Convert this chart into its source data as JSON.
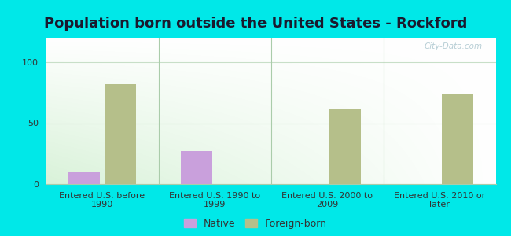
{
  "title": "Population born outside the United States - Rockford",
  "categories": [
    "Entered U.S. before\n1990",
    "Entered U.S. 1990 to\n1999",
    "Entered U.S. 2000 to\n2009",
    "Entered U.S. 2010 or\nlater"
  ],
  "native_values": [
    10,
    27,
    0,
    0
  ],
  "foreign_born_values": [
    82,
    0,
    62,
    74
  ],
  "native_color": "#c9a0dc",
  "foreign_born_color": "#b5bf8a",
  "ylim": [
    0,
    120
  ],
  "yticks": [
    0,
    50,
    100
  ],
  "outer_background": "#00e8e8",
  "bar_width": 0.28,
  "legend_native": "Native",
  "legend_foreign": "Foreign-born",
  "watermark": "City-Data.com",
  "title_fontsize": 13,
  "title_color": "#1a1a2e",
  "tick_fontsize": 8,
  "legend_fontsize": 9,
  "grid_color": "#c8dfc8",
  "separator_color": "#aaccaa"
}
